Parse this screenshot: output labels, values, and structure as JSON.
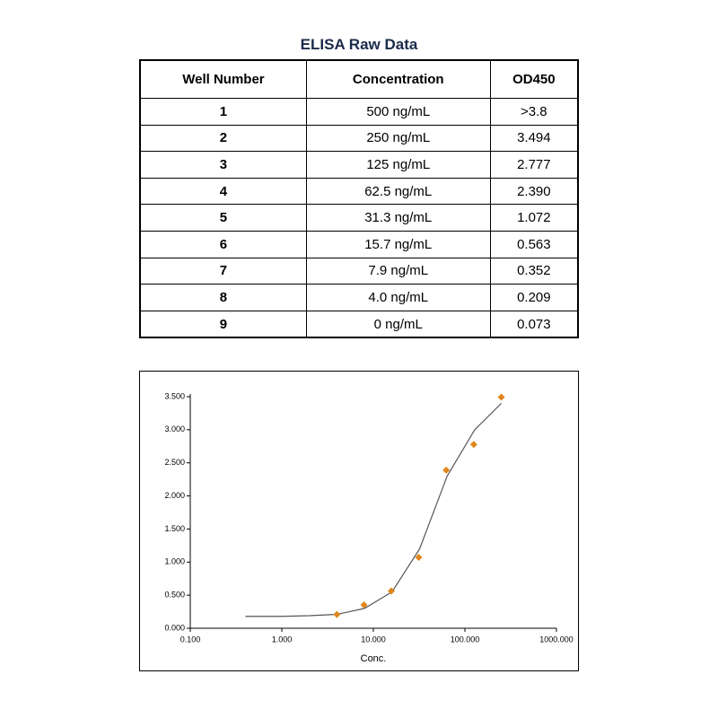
{
  "table": {
    "title": "ELISA Raw Data",
    "header": [
      "Well Number",
      "Concentration",
      "OD450"
    ],
    "rows": [
      [
        "1",
        "500 ng/mL",
        ">3.8"
      ],
      [
        "2",
        "250 ng/mL",
        "3.494"
      ],
      [
        "3",
        "125 ng/mL",
        "2.777"
      ],
      [
        "4",
        "62.5 ng/mL",
        "2.390"
      ],
      [
        "5",
        "31.3 ng/mL",
        "1.072"
      ],
      [
        "6",
        "15.7 ng/mL",
        "0.563"
      ],
      [
        "7",
        "7.9 ng/mL",
        "0.352"
      ],
      [
        "8",
        "4.0 ng/mL",
        "0.209"
      ],
      [
        "9",
        "0 ng/mL",
        "0.073"
      ]
    ]
  },
  "chart_data": {
    "type": "scatter",
    "x_label": "Conc.",
    "log_x": true,
    "xlim": [
      0.1,
      1000
    ],
    "xticks": [
      {
        "value": 0.1,
        "label": "0.100"
      },
      {
        "value": 1,
        "label": "1.000"
      },
      {
        "value": 10,
        "label": "10.000"
      },
      {
        "value": 100,
        "label": "100.000"
      },
      {
        "value": 1000,
        "label": "1000.000"
      }
    ],
    "ylim": [
      0,
      3.5
    ],
    "yticks": [
      {
        "value": 0,
        "label": "0.000"
      },
      {
        "value": 0.5,
        "label": "0.500"
      },
      {
        "value": 1,
        "label": "1.000"
      },
      {
        "value": 1.5,
        "label": "1.500"
      },
      {
        "value": 2,
        "label": "2.000"
      },
      {
        "value": 2.5,
        "label": "2.500"
      },
      {
        "value": 3,
        "label": "3.000"
      },
      {
        "value": 3.5,
        "label": "3.500"
      }
    ],
    "series": [
      {
        "type": "line",
        "color": "#555555",
        "x": [
          0.4,
          1,
          2,
          4,
          8,
          16,
          32,
          64,
          128,
          250
        ],
        "values": [
          0.18,
          0.18,
          0.19,
          0.21,
          0.3,
          0.55,
          1.2,
          2.3,
          3.0,
          3.4
        ]
      },
      {
        "type": "scatter",
        "color": "#e0861c",
        "x": [
          4,
          7.9,
          15.7,
          31.3,
          62.5,
          125,
          250
        ],
        "values": [
          0.209,
          0.352,
          0.563,
          1.072,
          2.39,
          2.777,
          3.494
        ]
      }
    ]
  }
}
